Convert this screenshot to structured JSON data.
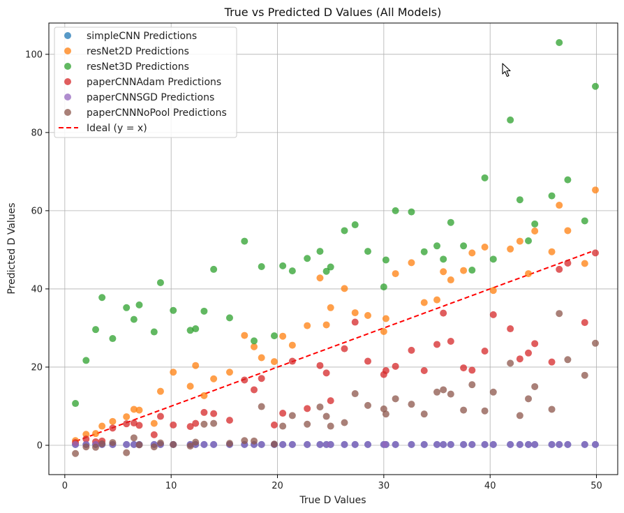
{
  "chart_data": {
    "type": "scatter",
    "title": "True vs Predicted D Values (All Models)",
    "xlabel": "True D Values",
    "ylabel": "Predicted D Values",
    "xlim": [
      -1.5,
      52.0
    ],
    "ylim": [
      -7.5,
      108.0
    ],
    "xticks": [
      0,
      10,
      20,
      30,
      40,
      50
    ],
    "yticks": [
      0,
      20,
      40,
      60,
      80,
      100
    ],
    "grid": true,
    "legend_position": "upper-left",
    "x": [
      1.0,
      2.0,
      2.9,
      3.5,
      4.5,
      5.8,
      6.5,
      7.0,
      8.4,
      9.0,
      10.2,
      11.8,
      12.3,
      13.1,
      14.0,
      15.5,
      16.9,
      17.8,
      18.5,
      19.7,
      20.5,
      21.4,
      22.8,
      24.0,
      24.6,
      25.0,
      26.3,
      27.3,
      28.5,
      30.0,
      30.2,
      31.1,
      32.6,
      33.8,
      35.0,
      35.6,
      36.3,
      37.5,
      38.3,
      39.5,
      40.3,
      41.9,
      42.8,
      43.6,
      44.2,
      45.8,
      46.5,
      47.3,
      48.9,
      49.9
    ],
    "series": [
      {
        "name": "simpleCNN Predictions",
        "color": "#1f77b4",
        "values": [
          0.2,
          0.2,
          0.2,
          0.2,
          0.2,
          0.2,
          0.2,
          0.2,
          0.2,
          0.2,
          0.2,
          0.2,
          0.2,
          0.2,
          0.2,
          0.2,
          0.2,
          0.2,
          0.2,
          0.2,
          0.2,
          0.2,
          0.2,
          0.2,
          0.2,
          0.2,
          0.2,
          0.2,
          0.2,
          0.2,
          0.2,
          0.2,
          0.2,
          0.2,
          0.2,
          0.2,
          0.2,
          0.2,
          0.2,
          0.2,
          0.2,
          0.2,
          0.2,
          0.2,
          0.2,
          0.2,
          0.2,
          0.2,
          0.2,
          0.2
        ]
      },
      {
        "name": "resNet2D Predictions",
        "color": "#ff7f0e",
        "values": [
          1.2,
          2.8,
          3.0,
          4.9,
          6.1,
          7.3,
          9.2,
          9.0,
          5.6,
          13.8,
          18.7,
          15.1,
          20.4,
          12.7,
          17.0,
          18.7,
          28.1,
          25.2,
          22.4,
          21.4,
          27.9,
          25.6,
          30.6,
          42.8,
          30.8,
          35.2,
          40.1,
          33.9,
          33.2,
          29.1,
          32.4,
          43.9,
          46.7,
          36.5,
          37.2,
          44.4,
          42.3,
          44.7,
          49.2,
          50.7,
          39.6,
          50.2,
          52.2,
          43.9,
          54.8,
          49.5,
          61.4,
          54.9,
          46.5,
          65.3
        ]
      },
      {
        "name": "resNet3D Predictions",
        "color": "#2ca02c",
        "values": [
          10.7,
          21.7,
          29.6,
          37.8,
          27.3,
          35.2,
          32.2,
          35.9,
          29.0,
          41.6,
          34.5,
          29.4,
          29.8,
          34.3,
          45.0,
          32.6,
          52.2,
          26.7,
          45.7,
          28.0,
          45.9,
          44.6,
          47.8,
          49.6,
          44.5,
          45.6,
          54.9,
          56.4,
          49.6,
          40.5,
          47.4,
          60.0,
          59.7,
          49.5,
          51.0,
          47.6,
          57.0,
          51.0,
          44.8,
          68.4,
          47.6,
          83.2,
          62.8,
          52.3,
          56.6,
          63.8,
          103.0,
          67.9,
          57.4,
          91.8
        ]
      },
      {
        "name": "paperCNNAdam Predictions",
        "color": "#d62728",
        "values": [
          0.7,
          1.6,
          0.9,
          1.1,
          4.4,
          5.5,
          5.7,
          5.1,
          2.7,
          7.4,
          5.2,
          4.8,
          5.6,
          8.4,
          8.1,
          6.4,
          16.7,
          14.2,
          17.1,
          5.2,
          8.2,
          21.5,
          9.4,
          20.4,
          18.5,
          11.4,
          24.7,
          31.5,
          21.5,
          18.1,
          19.1,
          20.2,
          24.3,
          19.1,
          25.8,
          33.8,
          26.6,
          19.8,
          19.2,
          24.1,
          33.4,
          29.8,
          22.1,
          23.6,
          26.0,
          21.3,
          45.0,
          46.6,
          31.4,
          49.2
        ]
      },
      {
        "name": "paperCNNSGD Predictions",
        "color": "#9467bd",
        "values": [
          0.2,
          0.2,
          0.2,
          0.2,
          0.2,
          0.2,
          0.2,
          0.2,
          0.2,
          0.2,
          0.2,
          0.2,
          0.2,
          0.2,
          0.2,
          0.2,
          0.2,
          0.2,
          0.2,
          0.2,
          0.2,
          0.2,
          0.2,
          0.2,
          0.2,
          0.2,
          0.2,
          0.2,
          0.2,
          0.2,
          0.2,
          0.2,
          0.2,
          0.2,
          0.2,
          0.2,
          0.2,
          0.2,
          0.2,
          0.2,
          0.2,
          0.2,
          0.2,
          0.2,
          0.2,
          0.2,
          0.2,
          0.2,
          0.2,
          0.2
        ]
      },
      {
        "name": "paperCNNNoPool Predictions",
        "color": "#8c564b",
        "values": [
          -2.1,
          -0.4,
          -0.5,
          0.4,
          0.7,
          -1.9,
          1.9,
          0.1,
          -0.4,
          0.6,
          0.2,
          -0.2,
          0.8,
          5.4,
          5.6,
          0.5,
          1.2,
          1.1,
          9.9,
          0.3,
          4.9,
          7.6,
          5.4,
          9.8,
          7.4,
          4.9,
          5.8,
          13.2,
          10.2,
          9.3,
          8.0,
          11.9,
          10.5,
          8.0,
          13.6,
          14.2,
          13.1,
          9.0,
          15.5,
          8.8,
          13.6,
          21.0,
          7.6,
          11.9,
          15.0,
          9.2,
          33.7,
          21.9,
          17.9,
          26.1
        ]
      }
    ],
    "ideal_line": {
      "name": "Ideal (y = x)",
      "color": "#ff0000",
      "x": [
        1.0,
        49.5
      ],
      "y": [
        1.0,
        49.5
      ]
    }
  },
  "cursor": {
    "icon": "mouse-pointer-icon"
  }
}
